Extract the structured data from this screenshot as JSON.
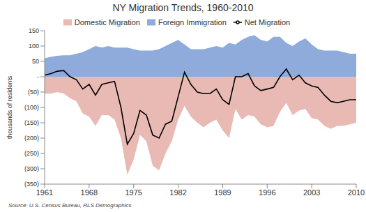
{
  "chart_data": {
    "type": "area",
    "title": "NY Migration Trends, 1960-2010",
    "y_label": "thousands of residents",
    "source": "Source: U.S. Census Bureau, RLS Demographics",
    "x": [
      1961,
      1962,
      1963,
      1964,
      1965,
      1966,
      1967,
      1968,
      1969,
      1970,
      1971,
      1972,
      1973,
      1974,
      1975,
      1976,
      1977,
      1978,
      1979,
      1980,
      1981,
      1982,
      1983,
      1984,
      1985,
      1986,
      1987,
      1988,
      1989,
      1990,
      1991,
      1992,
      1993,
      1994,
      1995,
      1996,
      1997,
      1998,
      1999,
      2000,
      2001,
      2002,
      2003,
      2004,
      2005,
      2006,
      2007,
      2008,
      2009,
      2010
    ],
    "series": [
      {
        "name": "Domestic Migration",
        "type": "area",
        "color": "#e9b9b4",
        "values": [
          -55,
          -55,
          -50,
          -55,
          -70,
          -80,
          -120,
          -130,
          -160,
          -125,
          -125,
          -140,
          -200,
          -320,
          -270,
          -190,
          -210,
          -290,
          -305,
          -250,
          -210,
          -140,
          -95,
          -130,
          -150,
          -165,
          -150,
          -140,
          -175,
          -200,
          -105,
          -140,
          -125,
          -130,
          -155,
          -165,
          -160,
          -115,
          -85,
          -125,
          -110,
          -105,
          -135,
          -140,
          -160,
          -170,
          -160,
          -160,
          -155,
          -150
        ]
      },
      {
        "name": "Foreign Immigration",
        "type": "area",
        "color": "#8eabdc",
        "values": [
          60,
          65,
          68,
          70,
          70,
          75,
          80,
          90,
          100,
          95,
          100,
          95,
          95,
          95,
          90,
          85,
          85,
          85,
          90,
          100,
          110,
          120,
          105,
          90,
          90,
          90,
          95,
          100,
          95,
          110,
          105,
          120,
          130,
          135,
          120,
          115,
          130,
          130,
          110,
          100,
          115,
          125,
          105,
          90,
          85,
          85,
          85,
          80,
          75,
          75
        ]
      },
      {
        "name": "Net Migration",
        "type": "line",
        "color": "#000000",
        "values": [
          5,
          10,
          18,
          20,
          0,
          -10,
          -40,
          -25,
          -60,
          -25,
          -20,
          -15,
          -100,
          -220,
          -185,
          -110,
          -125,
          -190,
          -200,
          -155,
          -145,
          -65,
          15,
          -25,
          -50,
          -55,
          -55,
          -40,
          -75,
          -90,
          0,
          0,
          10,
          -30,
          -45,
          -40,
          -35,
          0,
          25,
          -10,
          5,
          -20,
          -30,
          -35,
          -60,
          -80,
          -85,
          -80,
          -75,
          -75
        ]
      }
    ],
    "xlim": [
      1961,
      2010
    ],
    "xticks": [
      1961,
      1968,
      1975,
      1982,
      1989,
      1996,
      2003,
      2010
    ],
    "ylim": [
      -350,
      150
    ],
    "yticks": [
      {
        "value": -350,
        "label": "(350)"
      },
      {
        "value": -300,
        "label": "(300)"
      },
      {
        "value": -250,
        "label": "(250)"
      },
      {
        "value": -200,
        "label": "(200)"
      },
      {
        "value": -150,
        "label": "(150)"
      },
      {
        "value": -100,
        "label": "(100)"
      },
      {
        "value": -50,
        "label": "(50)"
      },
      {
        "value": 0,
        "label": "-"
      },
      50,
      100,
      150
    ],
    "grid": false,
    "legend": "top"
  }
}
